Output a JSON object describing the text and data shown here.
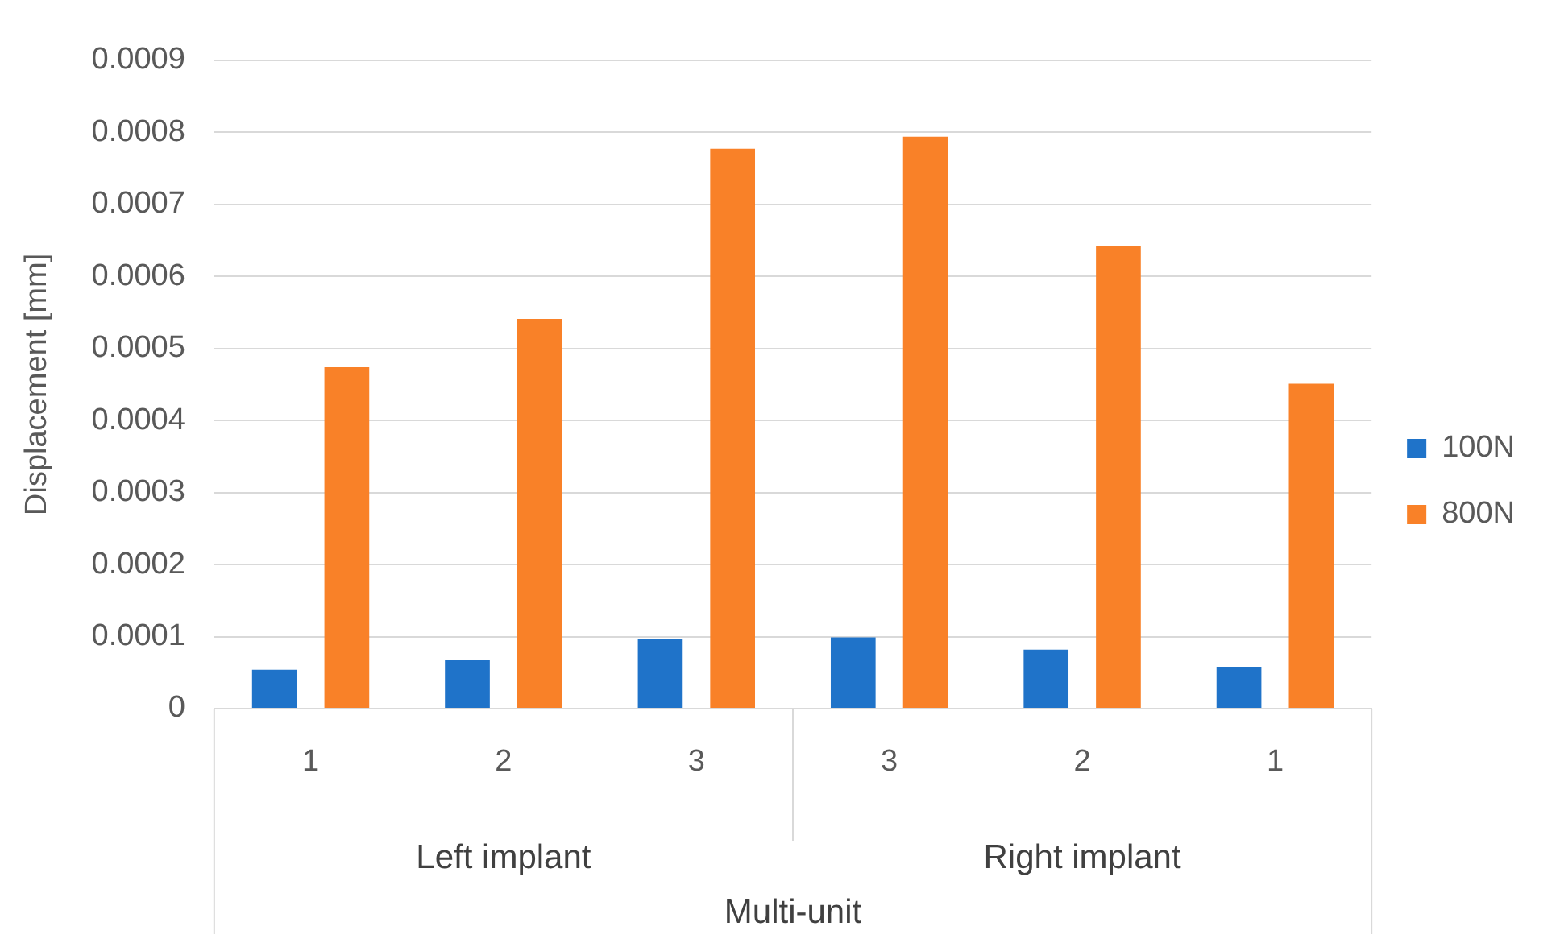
{
  "chart_data": {
    "type": "bar",
    "ylabel": "Displacement [mm]",
    "xlabel": "Multi-unit",
    "categories": [
      "1",
      "2",
      "3",
      "3",
      "2",
      "1"
    ],
    "series": [
      {
        "name": "100N",
        "color": "#1f73c9",
        "values": [
          5.4e-05,
          6.7e-05,
          9.7e-05,
          9.9e-05,
          8.2e-05,
          5.8e-05
        ]
      },
      {
        "name": "800N",
        "color": "#f98128",
        "values": [
          0.000474,
          0.000541,
          0.000777,
          0.000794,
          0.000642,
          0.000451
        ]
      }
    ],
    "annotations": [
      "Left implant",
      "Right implant"
    ],
    "ylim": [
      0,
      0.0009
    ],
    "yticks": [
      0,
      0.0001,
      0.0002,
      0.0003,
      0.0004,
      0.0005,
      0.0006,
      0.0007,
      0.0008,
      0.0009
    ],
    "grid": "y",
    "legend": "right"
  }
}
